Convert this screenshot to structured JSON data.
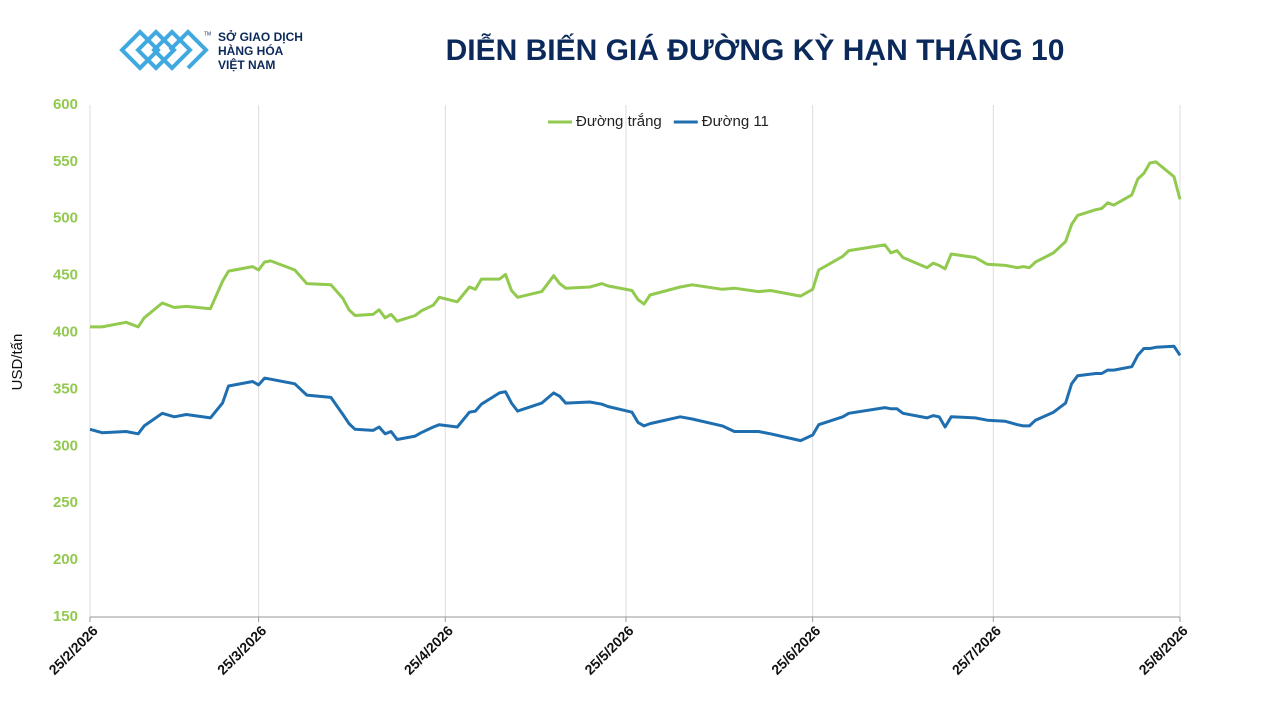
{
  "logo": {
    "lines": [
      "SỞ GIAO DỊCH",
      "HÀNG HÓA",
      "VIỆT NAM"
    ],
    "mark": "TM"
  },
  "chart_data": {
    "type": "line",
    "title": "DIỄN BIẾN GIÁ ĐƯỜNG KỲ HẠN THÁNG 10",
    "y_label": "USD/tấn",
    "x": [
      "2026-02-25",
      "2026-02-27",
      "2026-03-03",
      "2026-03-05",
      "2026-03-06",
      "2026-03-09",
      "2026-03-11",
      "2026-03-13",
      "2026-03-17",
      "2026-03-19",
      "2026-03-20",
      "2026-03-24",
      "2026-03-25",
      "2026-03-26",
      "2026-03-27",
      "2026-03-31",
      "2026-04-02",
      "2026-04-06",
      "2026-04-08",
      "2026-04-09",
      "2026-04-10",
      "2026-04-13",
      "2026-04-14",
      "2026-04-15",
      "2026-04-16",
      "2026-04-17",
      "2026-04-20",
      "2026-04-21",
      "2026-04-23",
      "2026-04-24",
      "2026-04-27",
      "2026-04-29",
      "2026-04-30",
      "2026-05-01",
      "2026-05-04",
      "2026-05-05",
      "2026-05-06",
      "2026-05-07",
      "2026-05-11",
      "2026-05-13",
      "2026-05-14",
      "2026-05-15",
      "2026-05-19",
      "2026-05-21",
      "2026-05-22",
      "2026-05-26",
      "2026-05-27",
      "2026-05-28",
      "2026-05-29",
      "2026-06-03",
      "2026-06-05",
      "2026-06-10",
      "2026-06-12",
      "2026-06-16",
      "2026-06-18",
      "2026-06-23",
      "2026-06-25",
      "2026-06-26",
      "2026-06-30",
      "2026-07-01",
      "2026-07-07",
      "2026-07-08",
      "2026-07-09",
      "2026-07-10",
      "2026-07-14",
      "2026-07-15",
      "2026-07-16",
      "2026-07-17",
      "2026-07-18",
      "2026-07-22",
      "2026-07-24",
      "2026-07-27",
      "2026-07-29",
      "2026-07-30",
      "2026-07-31",
      "2026-08-01",
      "2026-08-04",
      "2026-08-06",
      "2026-08-07",
      "2026-08-08",
      "2026-08-11",
      "2026-08-12",
      "2026-08-13",
      "2026-08-14",
      "2026-08-17",
      "2026-08-18",
      "2026-08-19",
      "2026-08-20",
      "2026-08-21",
      "2026-08-24",
      "2026-08-25"
    ],
    "series": [
      {
        "name": "Đường trắng",
        "color": "#92c94f",
        "values": [
          405,
          405,
          409,
          405,
          413,
          426,
          422,
          423,
          421,
          445,
          454,
          458,
          455,
          462,
          463,
          455,
          443,
          442,
          430,
          420,
          415,
          416,
          420,
          413,
          416,
          410,
          415,
          419,
          424,
          431,
          427,
          440,
          438,
          447,
          447,
          451,
          437,
          431,
          436,
          450,
          443,
          439,
          440,
          443,
          441,
          437,
          429,
          425,
          433,
          440,
          442,
          438,
          439,
          436,
          437,
          432,
          438,
          455,
          467,
          472,
          477,
          470,
          472,
          466,
          457,
          461,
          459,
          456,
          469,
          466,
          460,
          459,
          457,
          458,
          457,
          462,
          470,
          480,
          495,
          503,
          508,
          509,
          514,
          512,
          521,
          535,
          540,
          549,
          550,
          537,
          517
        ]
      },
      {
        "name": "Đường 11",
        "color": "#1f6fb0",
        "values": [
          315,
          312,
          313,
          311,
          318,
          329,
          326,
          328,
          325,
          338,
          353,
          357,
          354,
          360,
          359,
          355,
          345,
          343,
          328,
          320,
          315,
          314,
          317,
          311,
          313,
          306,
          309,
          312,
          317,
          319,
          317,
          330,
          331,
          337,
          347,
          348,
          338,
          331,
          338,
          347,
          344,
          338,
          339,
          337,
          335,
          330,
          321,
          318,
          320,
          326,
          324,
          318,
          313,
          313,
          311,
          305,
          310,
          319,
          326,
          329,
          334,
          333,
          333,
          329,
          325,
          327,
          326,
          317,
          326,
          325,
          323,
          322,
          319,
          318,
          318,
          323,
          330,
          338,
          355,
          362,
          364,
          364,
          367,
          367,
          370,
          380,
          386,
          386,
          387,
          388,
          380
        ]
      }
    ],
    "xlim": [
      "2026-02-25",
      "2026-08-25"
    ],
    "xticks": [
      {
        "value": "2026-02-25",
        "label": "25/2/2026"
      },
      {
        "value": "2026-03-25",
        "label": "25/3/2026"
      },
      {
        "value": "2026-04-25",
        "label": "25/4/2026"
      },
      {
        "value": "2026-05-25",
        "label": "25/5/2026"
      },
      {
        "value": "2026-06-25",
        "label": "25/6/2026"
      },
      {
        "value": "2026-07-25",
        "label": "25/7/2026"
      },
      {
        "value": "2026-08-25",
        "label": "25/8/2026"
      }
    ],
    "ylim": [
      150,
      600
    ],
    "yticks": [
      150,
      200,
      250,
      300,
      350,
      400,
      450,
      500,
      550,
      600
    ],
    "grid": "x",
    "legend": "top"
  }
}
